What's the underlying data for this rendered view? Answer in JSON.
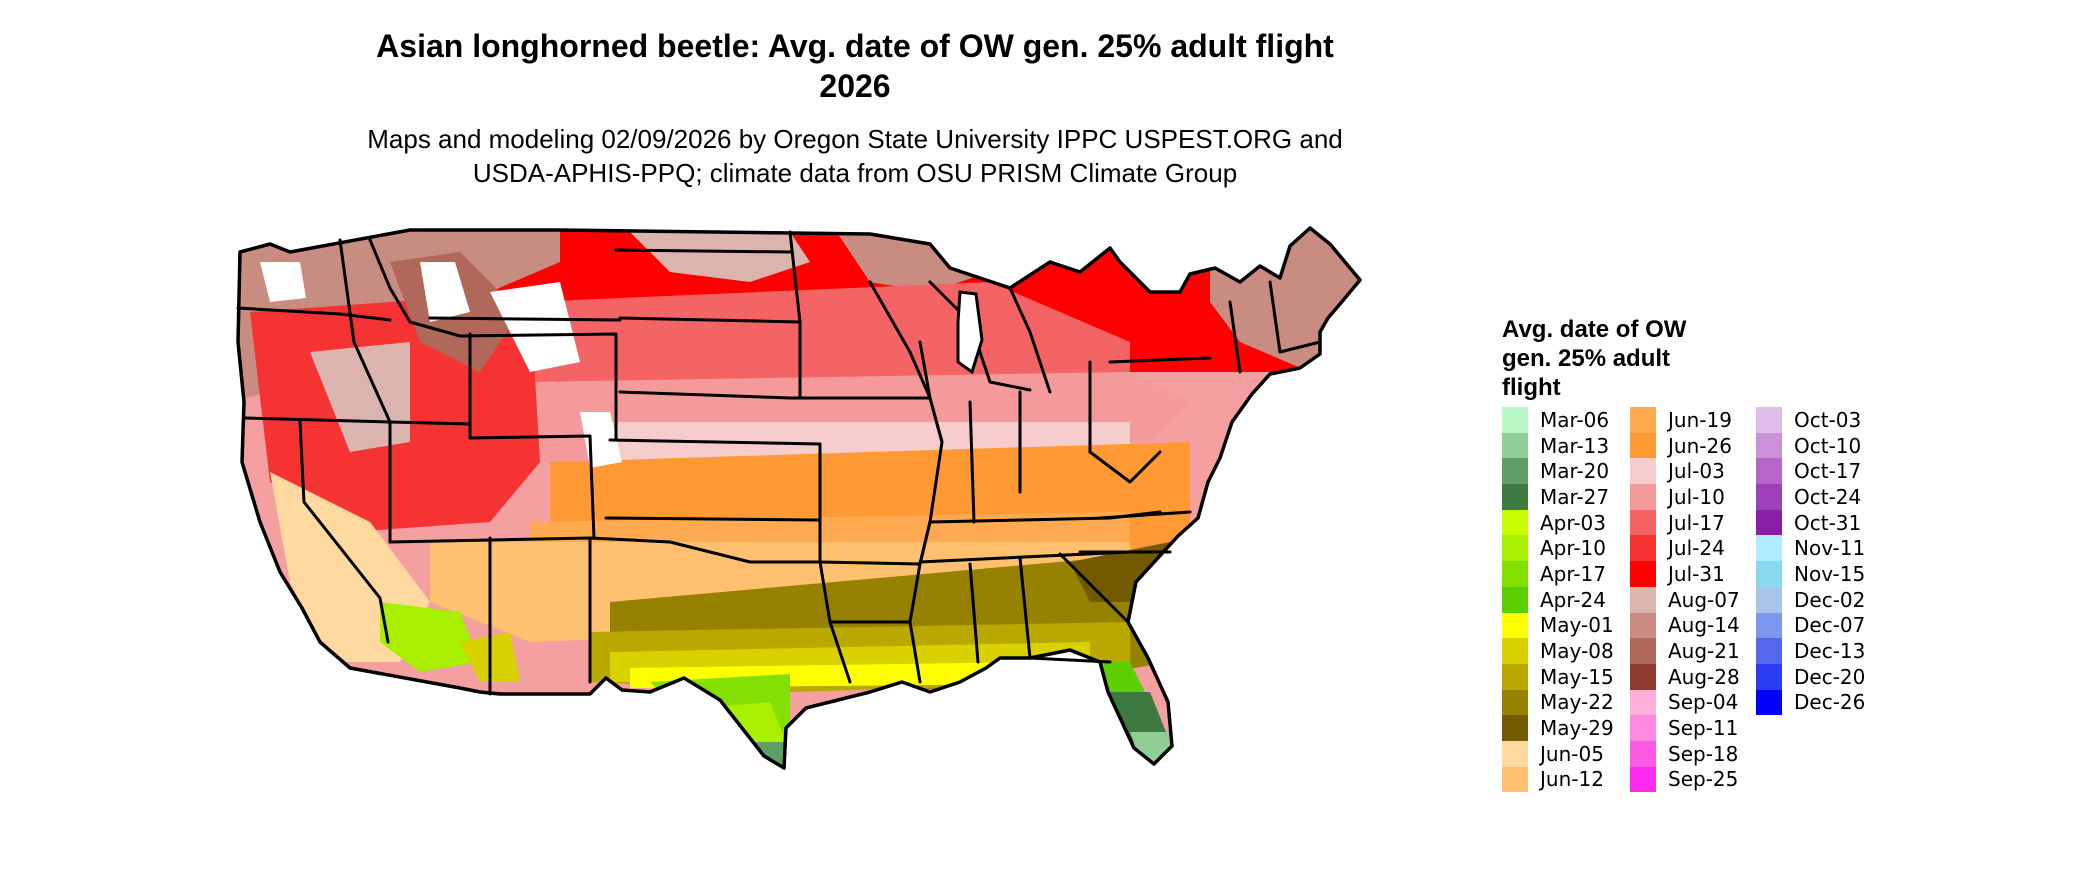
{
  "header": {
    "title_line1": "Asian longhorned beetle: Avg. date of OW gen. 25% adult flight",
    "title_line2": "2026",
    "subtitle_line1": "Maps and modeling 02/09/2026 by Oregon State University IPPC USPEST.ORG and",
    "subtitle_line2": "USDA-APHIS-PPQ; climate data from OSU PRISM Climate Group"
  },
  "map": {
    "description_label": "Contiguous United States with state boundaries",
    "colors": {
      "border": "#000000",
      "land_default": "#f4a0a0"
    }
  },
  "legend": {
    "title_line1": "Avg. date of OW",
    "title_line2": "gen. 25% adult",
    "title_line3": "flight",
    "columns": [
      [
        {
          "label": "Mar-06",
          "color": "#b9f7c6"
        },
        {
          "label": "Mar-13",
          "color": "#8fcf96"
        },
        {
          "label": "Mar-20",
          "color": "#5f9f66"
        },
        {
          "label": "Mar-27",
          "color": "#3c7a40"
        },
        {
          "label": "Apr-03",
          "color": "#c8ff00"
        },
        {
          "label": "Apr-10",
          "color": "#a8ef00"
        },
        {
          "label": "Apr-17",
          "color": "#84e000"
        },
        {
          "label": "Apr-24",
          "color": "#5ccf00"
        },
        {
          "label": "May-01",
          "color": "#ffff00"
        },
        {
          "label": "May-08",
          "color": "#d9d200"
        },
        {
          "label": "May-15",
          "color": "#b8a800"
        },
        {
          "label": "May-22",
          "color": "#968200"
        },
        {
          "label": "May-29",
          "color": "#735a00"
        },
        {
          "label": "Jun-05",
          "color": "#ffd9a0"
        },
        {
          "label": "Jun-12",
          "color": "#ffc070"
        }
      ],
      [
        {
          "label": "Jun-19",
          "color": "#ffaa50"
        },
        {
          "label": "Jun-26",
          "color": "#ff9933"
        },
        {
          "label": "Jul-03",
          "color": "#f6cccc"
        },
        {
          "label": "Jul-10",
          "color": "#f59a9a"
        },
        {
          "label": "Jul-17",
          "color": "#f56464"
        },
        {
          "label": "Jul-24",
          "color": "#f53333"
        },
        {
          "label": "Jul-31",
          "color": "#ff0000"
        },
        {
          "label": "Aug-07",
          "color": "#dcb4ae"
        },
        {
          "label": "Aug-14",
          "color": "#c98c80"
        },
        {
          "label": "Aug-21",
          "color": "#b0685a"
        },
        {
          "label": "Aug-28",
          "color": "#8e3a2c"
        },
        {
          "label": "Sep-04",
          "color": "#ffb0da"
        },
        {
          "label": "Sep-11",
          "color": "#ff88e0"
        },
        {
          "label": "Sep-18",
          "color": "#ff5ae6"
        },
        {
          "label": "Sep-25",
          "color": "#ff2cf0"
        }
      ],
      [
        {
          "label": "Oct-03",
          "color": "#e0bdea"
        },
        {
          "label": "Oct-10",
          "color": "#cc90d8"
        },
        {
          "label": "Oct-17",
          "color": "#b566c8"
        },
        {
          "label": "Oct-24",
          "color": "#a040b8"
        },
        {
          "label": "Oct-31",
          "color": "#8a1ea8"
        },
        {
          "label": "Nov-11",
          "color": "#b0ecff"
        },
        {
          "label": "Nov-15",
          "color": "#88d8f0"
        },
        {
          "label": "Dec-02",
          "color": "#a8c4e8"
        },
        {
          "label": "Dec-07",
          "color": "#7c98ec"
        },
        {
          "label": "Dec-13",
          "color": "#5468ee"
        },
        {
          "label": "Dec-20",
          "color": "#2a3cf4"
        },
        {
          "label": "Dec-26",
          "color": "#0000ff"
        }
      ]
    ]
  }
}
